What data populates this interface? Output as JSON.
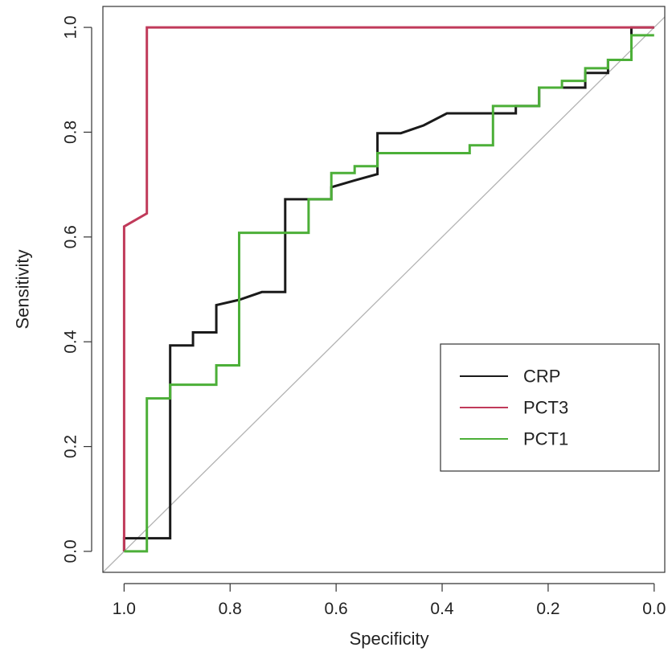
{
  "chart_data": {
    "type": "line",
    "title": "",
    "xlabel": "Specificity",
    "ylabel": "Sensitivity",
    "xlim": [
      1.04,
      -0.02
    ],
    "ylim": [
      -0.04,
      1.04
    ],
    "x_reversed": true,
    "xticks": [
      1.0,
      0.8,
      0.6,
      0.4,
      0.2,
      0.0
    ],
    "xtick_labels": [
      "1.0",
      "0.8",
      "0.6",
      "0.4",
      "0.2",
      "0.0"
    ],
    "yticks": [
      0.0,
      0.2,
      0.4,
      0.6,
      0.8,
      1.0
    ],
    "ytick_labels": [
      "0.0",
      "0.2",
      "0.4",
      "0.6",
      "0.8",
      "1.0"
    ],
    "grid": false,
    "legend_position": "right",
    "reference_line": {
      "from": [
        1.0,
        0.0
      ],
      "to": [
        0.0,
        1.0
      ],
      "color": "#b3b3b3"
    },
    "series": [
      {
        "name": "CRP",
        "color": "#1a1a1a",
        "points": [
          [
            1.0,
            0.0
          ],
          [
            1.0,
            0.025
          ],
          [
            0.913,
            0.025
          ],
          [
            0.913,
            0.393
          ],
          [
            0.87,
            0.393
          ],
          [
            0.87,
            0.418
          ],
          [
            0.826,
            0.418
          ],
          [
            0.826,
            0.47
          ],
          [
            0.783,
            0.48
          ],
          [
            0.74,
            0.495
          ],
          [
            0.696,
            0.495
          ],
          [
            0.696,
            0.672
          ],
          [
            0.652,
            0.672
          ],
          [
            0.652,
            0.672
          ],
          [
            0.609,
            0.672
          ],
          [
            0.609,
            0.695
          ],
          [
            0.565,
            0.708
          ],
          [
            0.522,
            0.72
          ],
          [
            0.522,
            0.798
          ],
          [
            0.478,
            0.798
          ],
          [
            0.435,
            0.813
          ],
          [
            0.391,
            0.836
          ],
          [
            0.348,
            0.836
          ],
          [
            0.304,
            0.836
          ],
          [
            0.261,
            0.836
          ],
          [
            0.261,
            0.85
          ],
          [
            0.217,
            0.85
          ],
          [
            0.217,
            0.885
          ],
          [
            0.13,
            0.885
          ],
          [
            0.13,
            0.913
          ],
          [
            0.087,
            0.913
          ],
          [
            0.087,
            0.938
          ],
          [
            0.043,
            0.938
          ],
          [
            0.043,
            1.0
          ],
          [
            0.0,
            1.0
          ]
        ]
      },
      {
        "name": "PCT3",
        "color": "#c03a5a",
        "points": [
          [
            1.0,
            0.0
          ],
          [
            1.0,
            0.62
          ],
          [
            0.957,
            0.645
          ],
          [
            0.957,
            1.0
          ],
          [
            0.0,
            1.0
          ]
        ]
      },
      {
        "name": "PCT1",
        "color": "#4caf38",
        "points": [
          [
            1.0,
            0.0
          ],
          [
            0.957,
            0.0
          ],
          [
            0.957,
            0.292
          ],
          [
            0.913,
            0.292
          ],
          [
            0.913,
            0.318
          ],
          [
            0.826,
            0.318
          ],
          [
            0.826,
            0.355
          ],
          [
            0.783,
            0.355
          ],
          [
            0.783,
            0.608
          ],
          [
            0.652,
            0.608
          ],
          [
            0.652,
            0.672
          ],
          [
            0.609,
            0.672
          ],
          [
            0.609,
            0.722
          ],
          [
            0.565,
            0.722
          ],
          [
            0.565,
            0.735
          ],
          [
            0.522,
            0.735
          ],
          [
            0.522,
            0.76
          ],
          [
            0.348,
            0.76
          ],
          [
            0.348,
            0.775
          ],
          [
            0.304,
            0.775
          ],
          [
            0.304,
            0.85
          ],
          [
            0.217,
            0.85
          ],
          [
            0.217,
            0.885
          ],
          [
            0.174,
            0.885
          ],
          [
            0.174,
            0.898
          ],
          [
            0.13,
            0.898
          ],
          [
            0.13,
            0.922
          ],
          [
            0.087,
            0.922
          ],
          [
            0.087,
            0.938
          ],
          [
            0.043,
            0.938
          ],
          [
            0.043,
            0.985
          ],
          [
            0.0,
            0.985
          ]
        ]
      }
    ]
  }
}
